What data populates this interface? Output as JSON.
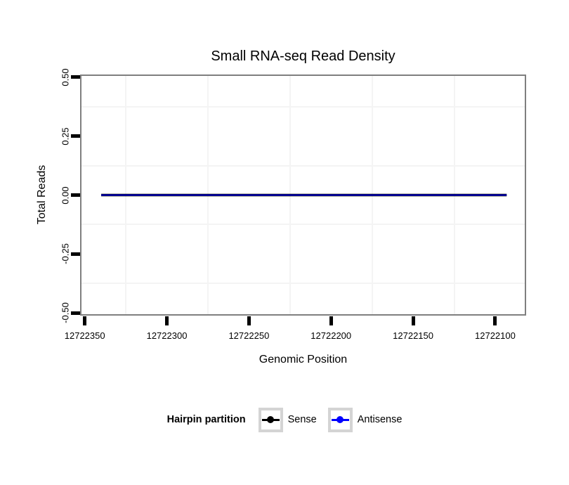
{
  "chart_data": {
    "type": "line",
    "title": "Small RNA-seq Read Density",
    "xlabel": "Genomic Position",
    "ylabel": "Total Reads",
    "legend_title": "Hairpin partition",
    "legend_position": "bottom",
    "x_reversed": true,
    "xlim": [
      12722352,
      12722082
    ],
    "ylim": [
      -0.505,
      0.505
    ],
    "x_ticks": [
      12722350,
      12722300,
      12722250,
      12722200,
      12722150,
      12722100
    ],
    "x_tick_labels": [
      "12722350",
      "12722300",
      "12722250",
      "12722200",
      "12722150",
      "12722100"
    ],
    "y_ticks": [
      0.5,
      0.25,
      0,
      -0.25,
      -0.5
    ],
    "y_tick_labels": [
      "0.50",
      "0.25",
      "0.00",
      "-0.25",
      "-0.50"
    ],
    "grid": {
      "major": "hidden",
      "minor_color": "#f4f4f4"
    },
    "series": [
      {
        "name": "Sense",
        "color": "#000000",
        "x": [
          12722340,
          12722093
        ],
        "y": [
          0,
          0
        ],
        "line_width": 3.4
      },
      {
        "name": "Antisense",
        "color": "#0000ff",
        "x": [
          12722340,
          12722093
        ],
        "y": [
          0,
          0
        ],
        "line_width": 1.6
      }
    ],
    "colors": {
      "panel_border": "#7f7f7f",
      "tick": "#000000",
      "legend_key_border": "#d4d4d4",
      "text": "#000000",
      "background": "#ffffff"
    }
  }
}
